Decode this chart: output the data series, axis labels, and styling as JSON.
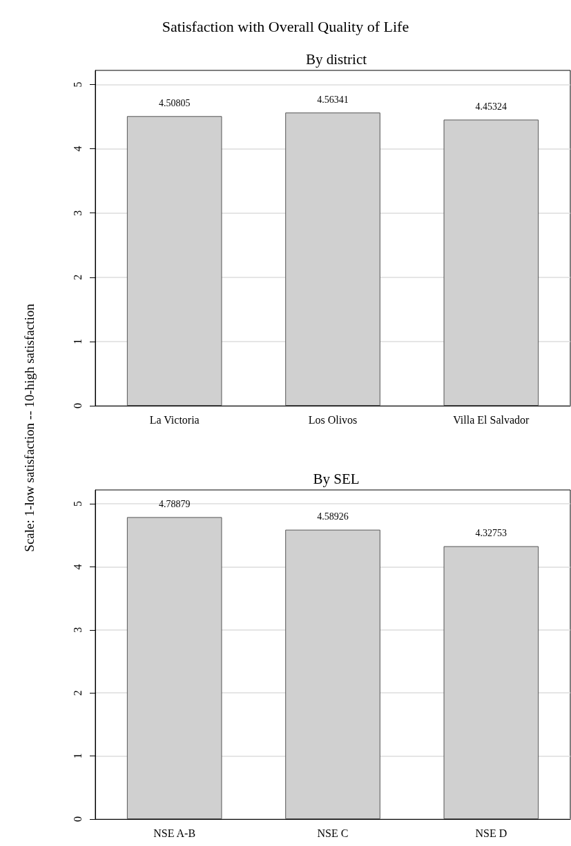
{
  "chart_data": [
    {
      "type": "bar",
      "title": "Satisfaction with Overall Quality of Life",
      "subtitle": "By district",
      "ylabel": "Scale: 1-low satisfaction -- 10-high satisfaction",
      "categories": [
        "La Victoria",
        "Los Olivos",
        "Villa El Salvador"
      ],
      "values": [
        4.50805,
        4.56341,
        4.45324
      ],
      "color": "#d0d0d0",
      "ylim": [
        0,
        5.22
      ],
      "yticks": [
        0,
        1,
        2,
        3,
        4,
        5
      ],
      "grid": "y",
      "data_labels": true
    },
    {
      "type": "bar",
      "title": "By SEL",
      "categories": [
        "NSE A-B",
        "NSE C",
        "NSE D"
      ],
      "values": [
        4.78879,
        4.58926,
        4.32753
      ],
      "color": "#d0d0d0",
      "ylim": [
        0,
        5.22
      ],
      "yticks": [
        0,
        1,
        2,
        3,
        4,
        5
      ],
      "grid": "y",
      "data_labels": true
    }
  ]
}
